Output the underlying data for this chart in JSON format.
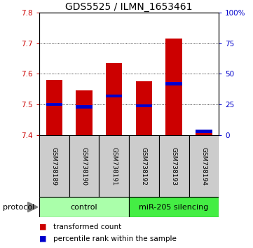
{
  "title": "GDS5525 / ILMN_1653461",
  "samples": [
    "GSM738189",
    "GSM738190",
    "GSM738191",
    "GSM738192",
    "GSM738193",
    "GSM738194"
  ],
  "red_values": [
    7.58,
    7.545,
    7.635,
    7.575,
    7.715,
    7.415
  ],
  "blue_values_pct": [
    25,
    23,
    32,
    24,
    42,
    3
  ],
  "ylim": [
    7.4,
    7.8
  ],
  "yticks_left": [
    7.4,
    7.5,
    7.6,
    7.7,
    7.8
  ],
  "right_yticks": [
    0,
    25,
    50,
    75,
    100
  ],
  "right_ytick_labels": [
    "0",
    "25",
    "50",
    "75",
    "100%"
  ],
  "grid_lines": [
    7.5,
    7.6,
    7.7
  ],
  "bar_bottom": 7.4,
  "bar_width": 0.55,
  "blue_bar_height": 0.01,
  "red_color": "#cc0000",
  "blue_color": "#0000cc",
  "title_fontsize": 10,
  "tick_fontsize": 7.5,
  "sample_fontsize": 6.5,
  "legend_fontsize": 7.5,
  "proto_fontsize": 8,
  "control_color": "#aaffaa",
  "mirna_color": "#44ee44",
  "gray_color": "#cccccc",
  "protocol_label": "protocol",
  "legend_red": "transformed count",
  "legend_blue": "percentile rank within the sample",
  "control_label": "control",
  "mirna_label": "miR-205 silencing"
}
